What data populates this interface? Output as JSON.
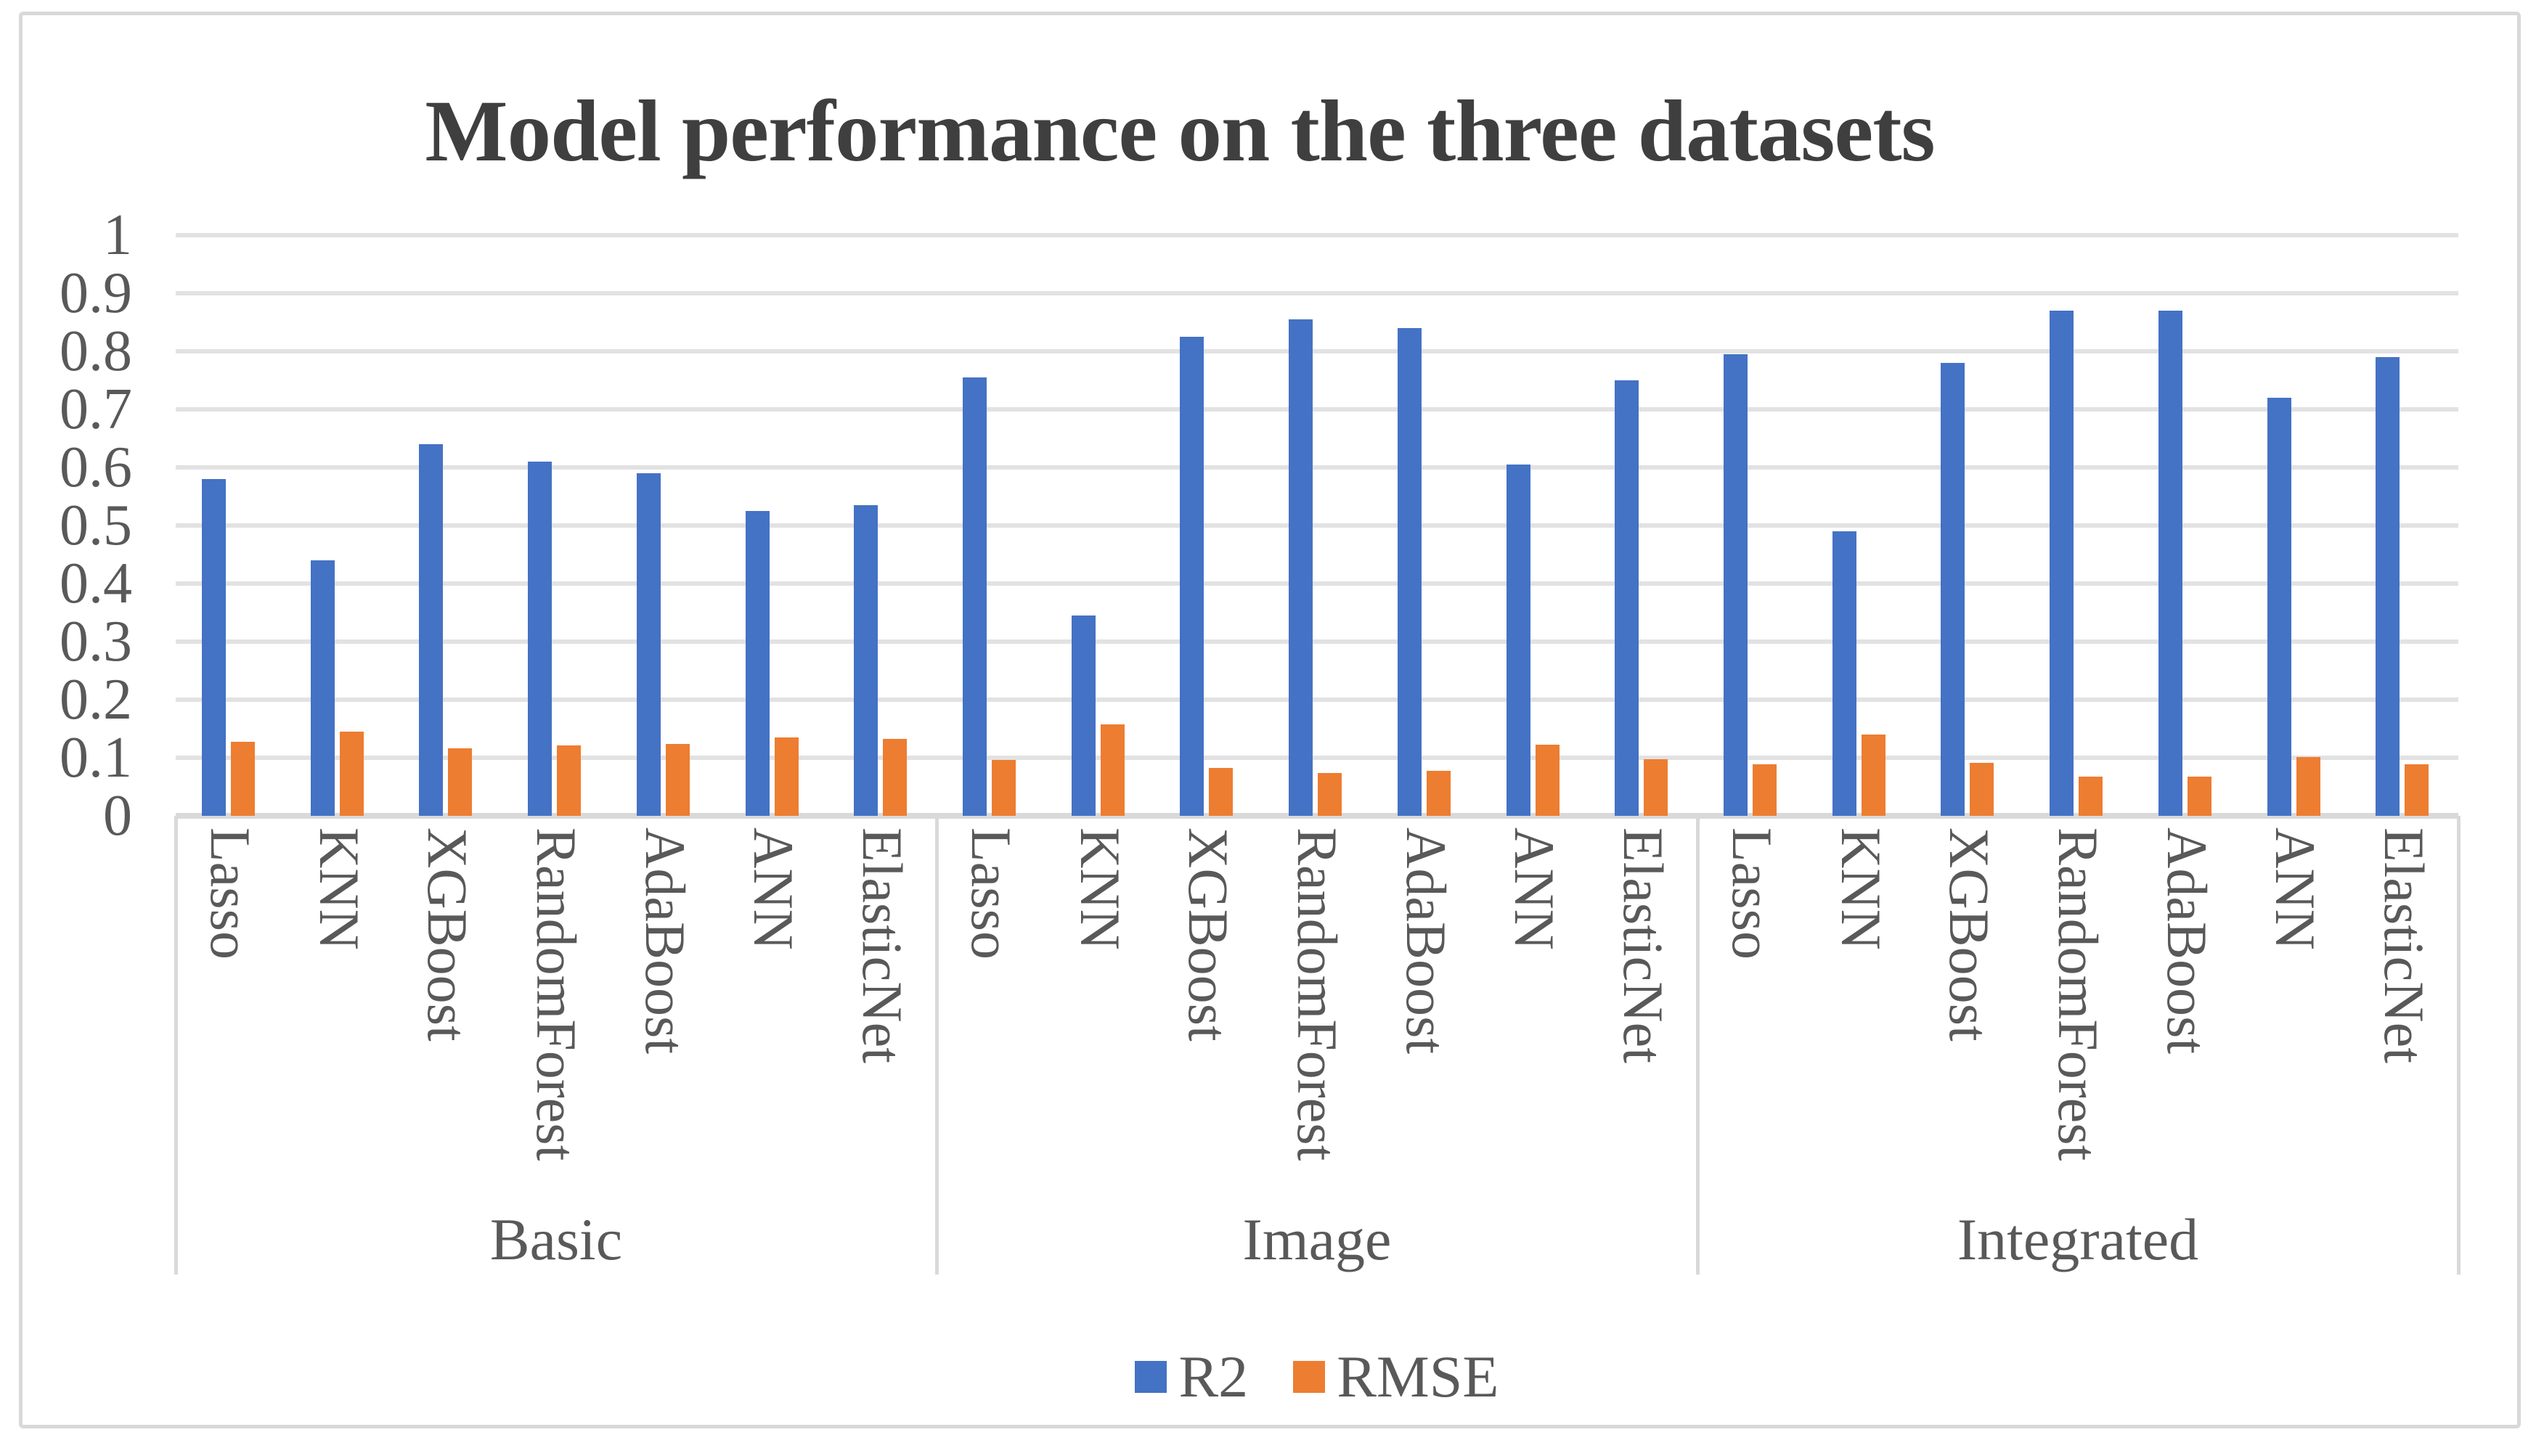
{
  "figure": {
    "background_color": "#FFFFFF",
    "border_color": "#D9D9D9"
  },
  "chart_data": {
    "type": "bar",
    "title": "Model performance on the three datasets",
    "title_color": "#3F3F3F",
    "text_color": "#595959",
    "gridline_color": "#E2E2E2",
    "axis_line_color": "#D9D9D9",
    "grid": true,
    "ylim": [
      0,
      1
    ],
    "ytick_step": 0.1,
    "ytick_labels": [
      "1",
      "0.9",
      "0.8",
      "0.7",
      "0.6",
      "0.5",
      "0.4",
      "0.3",
      "0.2",
      "0.1",
      "0"
    ],
    "legend_position": "bottom-center",
    "group_labels": [
      "Basic",
      "Image",
      "Integrated"
    ],
    "categories": [
      "Lasso",
      "KNN",
      "XGBoost",
      "RandomForest",
      "AdaBoost",
      "ANN",
      "ElasticNet"
    ],
    "series": [
      {
        "name": "R2",
        "color": "#4472C4",
        "values_by_group": [
          [
            0.58,
            0.44,
            0.64,
            0.61,
            0.59,
            0.525,
            0.535
          ],
          [
            0.755,
            0.345,
            0.825,
            0.855,
            0.84,
            0.605,
            0.75
          ],
          [
            0.795,
            0.49,
            0.78,
            0.87,
            0.87,
            0.72,
            0.79
          ]
        ]
      },
      {
        "name": "RMSE",
        "color": "#ED7D31",
        "values_by_group": [
          [
            0.127,
            0.145,
            0.116,
            0.121,
            0.124,
            0.135,
            0.133
          ],
          [
            0.096,
            0.158,
            0.082,
            0.074,
            0.078,
            0.122,
            0.097
          ],
          [
            0.089,
            0.14,
            0.091,
            0.067,
            0.067,
            0.101,
            0.089
          ]
        ]
      }
    ]
  }
}
